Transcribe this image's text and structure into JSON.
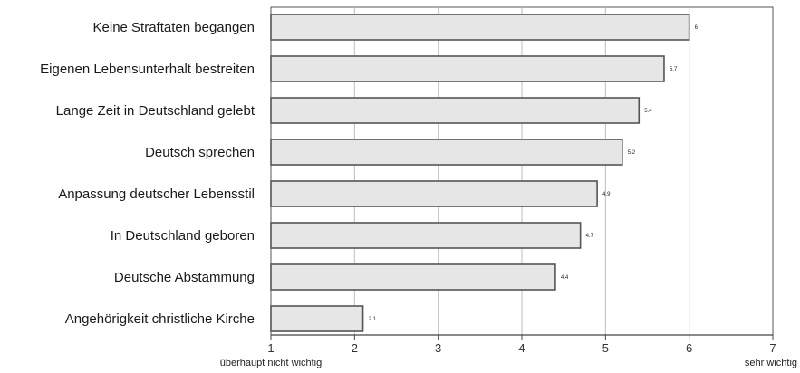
{
  "chart_data": {
    "type": "bar",
    "orientation": "horizontal",
    "categories": [
      "Keine Straftaten begangen",
      "Eigenen Lebensunterhalt bestreiten",
      "Lange Zeit in Deutschland gelebt",
      "Deutsch sprechen",
      "Anpassung deutscher Lebensstil",
      "In Deutschland geboren",
      "Deutsche Abstammung",
      "Angehörigkeit christliche Kirche"
    ],
    "values": [
      6.0,
      5.7,
      5.4,
      5.2,
      4.9,
      4.7,
      4.4,
      2.1
    ],
    "value_labels": [
      "6",
      "5.7",
      "5.4",
      "5.2",
      "4.9",
      "4.7",
      "4.4",
      "2.1"
    ],
    "xlim": [
      1,
      7
    ],
    "xticks": [
      1,
      2,
      3,
      4,
      5,
      6,
      7
    ],
    "x_min_label": "überhaupt nicht wichtig",
    "x_max_label": "sehr wichtig",
    "grid": "vertical",
    "colors": {
      "bar_fill": "#e6e6e6",
      "bar_edge": "#555555",
      "grid": "#bdbdbd"
    }
  }
}
